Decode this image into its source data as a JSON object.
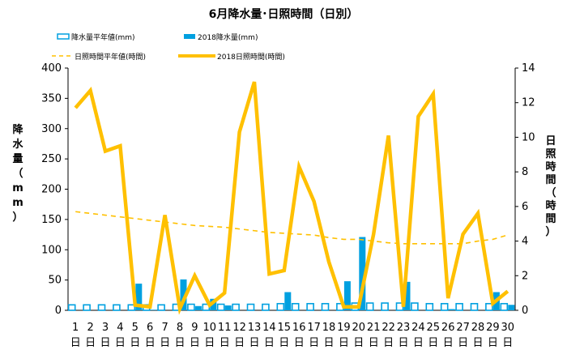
{
  "chart_data": {
    "type": "bar+line",
    "title": "6月降水量･日照時間（日別）",
    "categories": [
      "1",
      "2",
      "3",
      "4",
      "5",
      "6",
      "7",
      "8",
      "9",
      "10",
      "11",
      "12",
      "13",
      "14",
      "15",
      "16",
      "17",
      "18",
      "19",
      "20",
      "21",
      "22",
      "23",
      "24",
      "25",
      "26",
      "27",
      "28",
      "29",
      "30"
    ],
    "category_suffix": "日",
    "y_left": {
      "label": "降水量（mm）",
      "range": [
        0,
        400
      ],
      "ticks": [
        0,
        50,
        100,
        150,
        200,
        250,
        300,
        350,
        400
      ]
    },
    "y_right": {
      "label": "日照時間（時間）",
      "range": [
        0,
        14
      ],
      "ticks": [
        0,
        2,
        4,
        6,
        8,
        10,
        12,
        14
      ]
    },
    "grid": false,
    "legend_position": "top",
    "series": [
      {
        "name": "降水量平年値(mm)",
        "type": "bar",
        "style": "outline",
        "axis": "left",
        "color": "#00a0e0",
        "values": [
          9,
          9,
          9,
          9,
          9,
          9,
          9,
          10,
          10,
          10,
          10,
          10,
          10,
          10,
          11,
          11,
          11,
          11,
          11,
          12,
          12,
          12,
          12,
          12,
          11,
          11,
          11,
          11,
          11,
          11
        ]
      },
      {
        "name": "2018降水量(mm)",
        "type": "bar",
        "style": "filled",
        "axis": "left",
        "color": "#00a0e0",
        "values": [
          0,
          0,
          0,
          0,
          44,
          1,
          0,
          51,
          7,
          19,
          8,
          0,
          0,
          0,
          30,
          0,
          0,
          0,
          48,
          121,
          0,
          0,
          47,
          0,
          0,
          2,
          0,
          0,
          30,
          9
        ]
      },
      {
        "name": "日照時間平年値(時間)",
        "type": "line",
        "style": "dashed",
        "axis": "right",
        "color": "#ffc000",
        "values": [
          5.7,
          5.6,
          5.5,
          5.4,
          5.3,
          5.2,
          5.1,
          5.0,
          4.9,
          4.85,
          4.8,
          4.7,
          4.6,
          4.5,
          4.45,
          4.4,
          4.35,
          4.2,
          4.1,
          4.1,
          4.0,
          3.9,
          3.85,
          3.85,
          3.85,
          3.85,
          3.85,
          4.0,
          4.1,
          4.35
        ]
      },
      {
        "name": "2018日照時間(時間)",
        "type": "line",
        "style": "solid",
        "axis": "right",
        "color": "#ffc000",
        "values": [
          11.7,
          12.7,
          9.2,
          9.5,
          0.3,
          0.2,
          5.5,
          0.1,
          2.0,
          0.3,
          1.0,
          10.3,
          13.2,
          2.1,
          2.3,
          8.3,
          6.3,
          2.8,
          0.2,
          0.2,
          4.4,
          10.1,
          0.2,
          11.2,
          12.5,
          0.7,
          4.4,
          5.6,
          0.4,
          1.1
        ]
      }
    ]
  }
}
